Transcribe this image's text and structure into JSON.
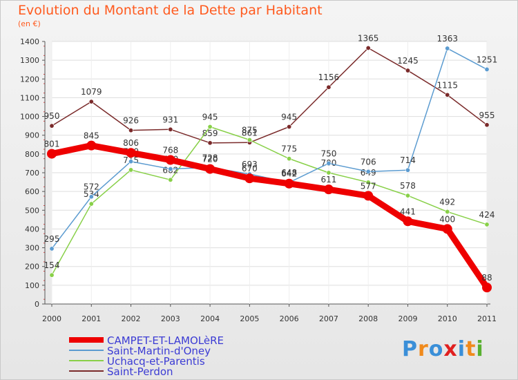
{
  "title": "Evolution du Montant de la Dette par Habitant",
  "subtitle": "(en €)",
  "logo": {
    "text": "Proxiti",
    "colors": [
      "#3a8fd8",
      "#f08a1c",
      "#3a8fd8",
      "#e02020",
      "#3a8fd8",
      "#f08a1c",
      "#58b030"
    ]
  },
  "chart_data": {
    "type": "line",
    "categories": [
      "2000",
      "2001",
      "2002",
      "2003",
      "2004",
      "2005",
      "2006",
      "2007",
      "2008",
      "2009",
      "2010",
      "2011"
    ],
    "ylim": [
      0,
      1400
    ],
    "yticks": [
      0,
      100,
      200,
      300,
      400,
      500,
      600,
      700,
      800,
      900,
      1000,
      1100,
      1200,
      1300,
      1400
    ],
    "grid": true,
    "legend_position": "bottom-left",
    "series": [
      {
        "name": "Saint-Perdon",
        "color": "#7a2a2a",
        "values": [
          950,
          1079,
          926,
          931,
          859,
          861,
          945,
          1156,
          1365,
          1245,
          1115,
          955
        ]
      },
      {
        "name": "Uchacq-et-Parentis",
        "color": "#88d048",
        "values": [
          154,
          534,
          715,
          662,
          945,
          875,
          775,
          700,
          649,
          578,
          492,
          424
        ]
      },
      {
        "name": "Saint-Martin-d'Oney",
        "color": "#5b9bd0",
        "values": [
          295,
          572,
          760,
          720,
          728,
          693,
          648,
          750,
          706,
          714,
          1363,
          1251
        ]
      },
      {
        "name": "CAMPET-ET-LAMOLèRE",
        "color": "#ee0000",
        "values": [
          801,
          845,
          806,
          768,
          720,
          670,
          642,
          611,
          577,
          441,
          400,
          88
        ]
      }
    ],
    "legend_order": [
      "CAMPET-ET-LAMOLèRE",
      "Saint-Martin-d'Oney",
      "Uchacq-et-Parentis",
      "Saint-Perdon"
    ]
  }
}
